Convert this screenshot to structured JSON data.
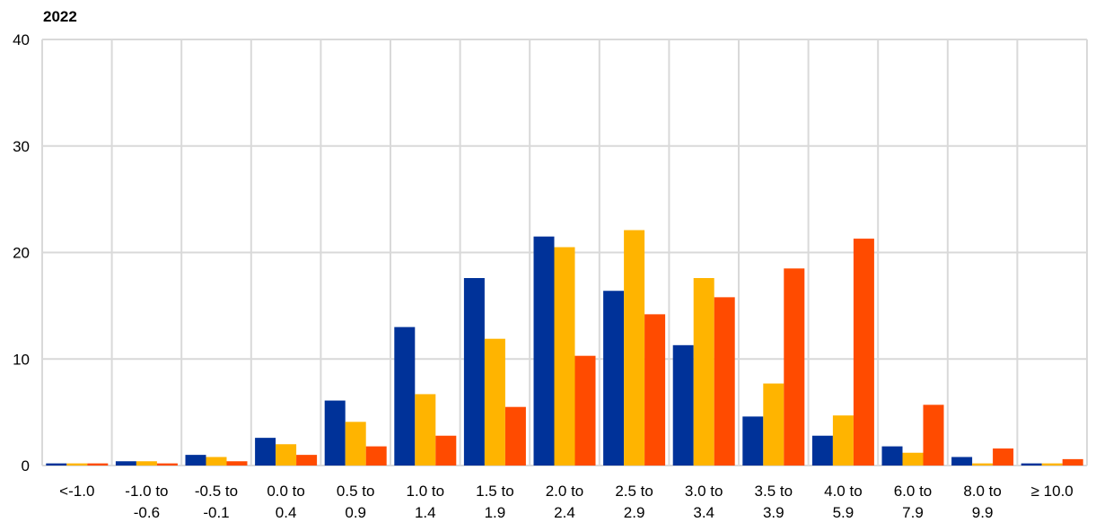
{
  "chart_data": {
    "type": "bar",
    "title": "2022",
    "categories": [
      [
        "<-1.0"
      ],
      [
        "-1.0 to",
        "-0.6"
      ],
      [
        "-0.5 to",
        "-0.1"
      ],
      [
        "0.0 to",
        "0.4"
      ],
      [
        "0.5 to",
        "0.9"
      ],
      [
        "1.0  to",
        "1.4"
      ],
      [
        "1.5  to",
        "1.9"
      ],
      [
        "2.0  to",
        "2.4"
      ],
      [
        "2.5  to",
        "2.9"
      ],
      [
        "3.0  to",
        "3.4"
      ],
      [
        "3.5  to",
        "3.9"
      ],
      [
        "4.0 to",
        "5.9"
      ],
      [
        "6.0 to",
        "7.9"
      ],
      [
        "8.0 to",
        "9.9"
      ],
      [
        "≥ 10.0"
      ]
    ],
    "series": [
      {
        "color": "#003299",
        "values": [
          0.2,
          0.4,
          1.0,
          2.6,
          6.1,
          13.0,
          17.6,
          21.5,
          16.4,
          11.3,
          4.6,
          2.8,
          1.8,
          0.8,
          0.2
        ]
      },
      {
        "color": "#ffb400",
        "values": [
          0.2,
          0.4,
          0.8,
          2.0,
          4.1,
          6.7,
          11.9,
          20.5,
          22.1,
          17.6,
          7.7,
          4.7,
          1.2,
          0.2,
          0.2
        ]
      },
      {
        "color": "#ff4b00",
        "values": [
          0.2,
          0.2,
          0.4,
          1.0,
          1.8,
          2.8,
          5.5,
          10.3,
          14.2,
          15.8,
          18.5,
          21.3,
          5.7,
          1.6,
          0.6
        ]
      }
    ],
    "ylim": [
      0,
      40
    ],
    "yticks": [
      0,
      10,
      20,
      30,
      40
    ],
    "grid": true
  }
}
